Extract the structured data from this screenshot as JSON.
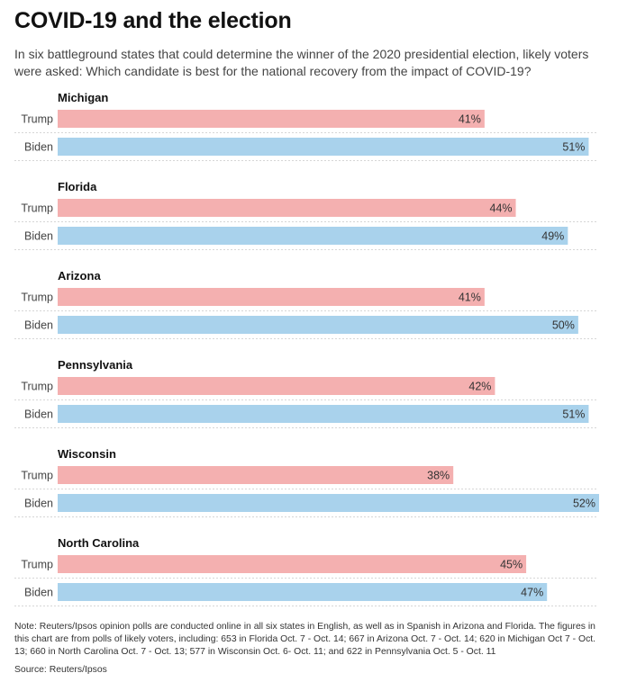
{
  "header": {
    "title": "COVID-19 and the election",
    "subtitle": "In six battleground states that could determine the winner of the 2020 presidential election, likely voters were asked: Which candidate is best for the national recovery from the impact of COVID-19?"
  },
  "chart_data": {
    "type": "bar",
    "orientation": "horizontal",
    "title": "COVID-19 and the election",
    "value_suffix": "%",
    "xlim": [
      0,
      52
    ],
    "grid": false,
    "series": [
      {
        "name": "Trump",
        "color": "#f4b0b0"
      },
      {
        "name": "Biden",
        "color": "#a9d2ec"
      }
    ],
    "groups": [
      {
        "state": "Michigan",
        "values": [
          {
            "label": "Trump",
            "value": 41
          },
          {
            "label": "Biden",
            "value": 51
          }
        ]
      },
      {
        "state": "Florida",
        "values": [
          {
            "label": "Trump",
            "value": 44
          },
          {
            "label": "Biden",
            "value": 49
          }
        ]
      },
      {
        "state": "Arizona",
        "values": [
          {
            "label": "Trump",
            "value": 41
          },
          {
            "label": "Biden",
            "value": 50
          }
        ]
      },
      {
        "state": "Pennsylvania",
        "values": [
          {
            "label": "Trump",
            "value": 42
          },
          {
            "label": "Biden",
            "value": 51
          }
        ]
      },
      {
        "state": "Wisconsin",
        "values": [
          {
            "label": "Trump",
            "value": 38
          },
          {
            "label": "Biden",
            "value": 52
          }
        ]
      },
      {
        "state": "North Carolina",
        "values": [
          {
            "label": "Trump",
            "value": 45
          },
          {
            "label": "Biden",
            "value": 47
          }
        ]
      }
    ]
  },
  "footer": {
    "note": "Note: Reuters/Ipsos opinion polls are conducted online in all six states in English, as well as in Spanish in Arizona and Florida. The figures in this chart are from polls of likely voters, including: 653 in Florida Oct. 7 - Oct. 14; 667 in Arizona Oct. 7 - Oct. 14; 620 in Michigan Oct 7 - Oct. 13; 660 in North Carolina Oct. 7 - Oct. 13; 577 in Wisconsin Oct. 6- Oct. 11; and 622 in Pennsylvania Oct. 5 - Oct. 11",
    "source": "Source: Reuters/Ipsos"
  }
}
